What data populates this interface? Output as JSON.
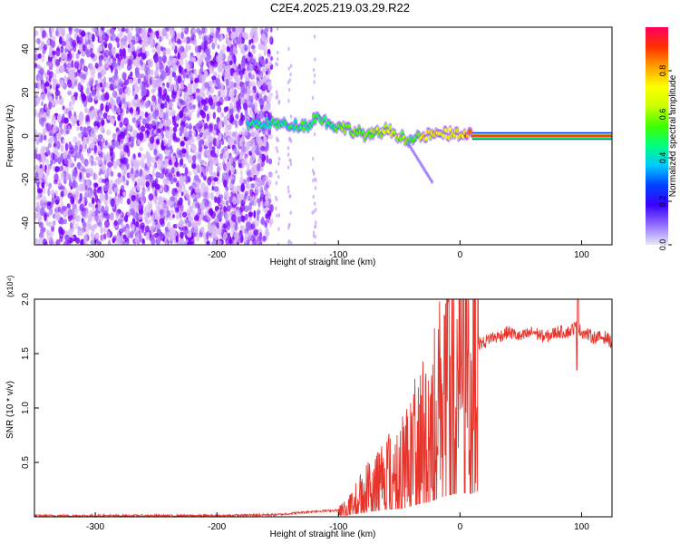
{
  "page": {
    "title": "C2E4.2025.219.03.29.R22"
  },
  "colors": {
    "noise_purple": "#7b00ff",
    "noise_light": "#d8b8f8",
    "snr_line": "#e8352c",
    "axis": "#000000"
  },
  "colorbar": {
    "label": "Normalized spectral amplitude",
    "ticks": [
      "0.0",
      "0.2",
      "0.4",
      "0.6",
      "0.8"
    ],
    "range": [
      0,
      1
    ],
    "colormap": [
      "#e6e6fa",
      "#9370ff",
      "#3a00ff",
      "#0040ff",
      "#00c8ff",
      "#00ff80",
      "#40ff00",
      "#c8ff00",
      "#ffff00",
      "#ffa000",
      "#ff3000",
      "#ff0060"
    ]
  },
  "chart_data": [
    {
      "type": "heatmap",
      "xlabel": "Height of straight line (km)",
      "ylabel": "Frequency (Hz)",
      "xlim": [
        -350,
        125
      ],
      "ylim": [
        -50,
        50
      ],
      "xticks": [
        -300,
        -200,
        -100,
        0,
        100
      ],
      "yticks": [
        -40,
        -20,
        0,
        20,
        40
      ],
      "colorbar_label": "Normalized spectral amplitude",
      "ridge": [
        {
          "x": -175,
          "f": 5,
          "a": 0.4
        },
        {
          "x": -160,
          "f": 6,
          "a": 0.45
        },
        {
          "x": -140,
          "f": 5,
          "a": 0.45
        },
        {
          "x": -125,
          "f": 5,
          "a": 0.5
        },
        {
          "x": -118,
          "f": 9,
          "a": 0.45
        },
        {
          "x": -105,
          "f": 5,
          "a": 0.5
        },
        {
          "x": -90,
          "f": 3,
          "a": 0.55
        },
        {
          "x": -75,
          "f": 0,
          "a": 0.55
        },
        {
          "x": -60,
          "f": 3,
          "a": 0.65
        },
        {
          "x": -50,
          "f": 0,
          "a": 0.6
        },
        {
          "x": -40,
          "f": -2,
          "a": 0.5
        },
        {
          "x": -30,
          "f": 0,
          "a": 0.7
        },
        {
          "x": -15,
          "f": 1,
          "a": 0.7
        },
        {
          "x": 0,
          "f": 1,
          "a": 0.75
        },
        {
          "x": 10,
          "f": 0,
          "a": 0.9
        },
        {
          "x": 125,
          "f": 0,
          "a": 0.95
        }
      ]
    },
    {
      "type": "line",
      "xlabel": "Height of straight line (km)",
      "ylabel": "SNR (10 * v/v)",
      "y_multiplier": "(x10⁴)",
      "xlim": [
        -350,
        125
      ],
      "ylim": [
        0,
        2.0
      ],
      "xticks": [
        -300,
        -200,
        -100,
        0,
        100
      ],
      "yticks": [
        0.5,
        1.0,
        1.5,
        2.0
      ],
      "ytick_labels": [
        "0.5",
        "1.0",
        "1.5",
        "2.0"
      ],
      "series": [
        {
          "x": [
            -350,
            -300,
            -250,
            -200,
            -150,
            -120,
            -100,
            -90,
            -80,
            -70,
            -60,
            -50,
            -45,
            -40,
            -35,
            -30,
            -25,
            -20,
            -15,
            -10,
            -5,
            0,
            5,
            10,
            15,
            20,
            25,
            30,
            40,
            50,
            60,
            70,
            80,
            90,
            95,
            100,
            110,
            120,
            125
          ],
          "y": [
            0.01,
            0.01,
            0.01,
            0.01,
            0.02,
            0.05,
            0.06,
            0.12,
            0.25,
            0.35,
            0.45,
            0.5,
            0.55,
            0.65,
            0.75,
            0.85,
            0.9,
            1.05,
            1.2,
            1.3,
            1.4,
            1.4,
            1.45,
            1.4,
            1.6,
            1.6,
            1.65,
            1.65,
            1.7,
            1.65,
            1.7,
            1.65,
            1.7,
            1.7,
            1.75,
            1.7,
            1.65,
            1.65,
            1.6
          ]
        }
      ]
    }
  ]
}
